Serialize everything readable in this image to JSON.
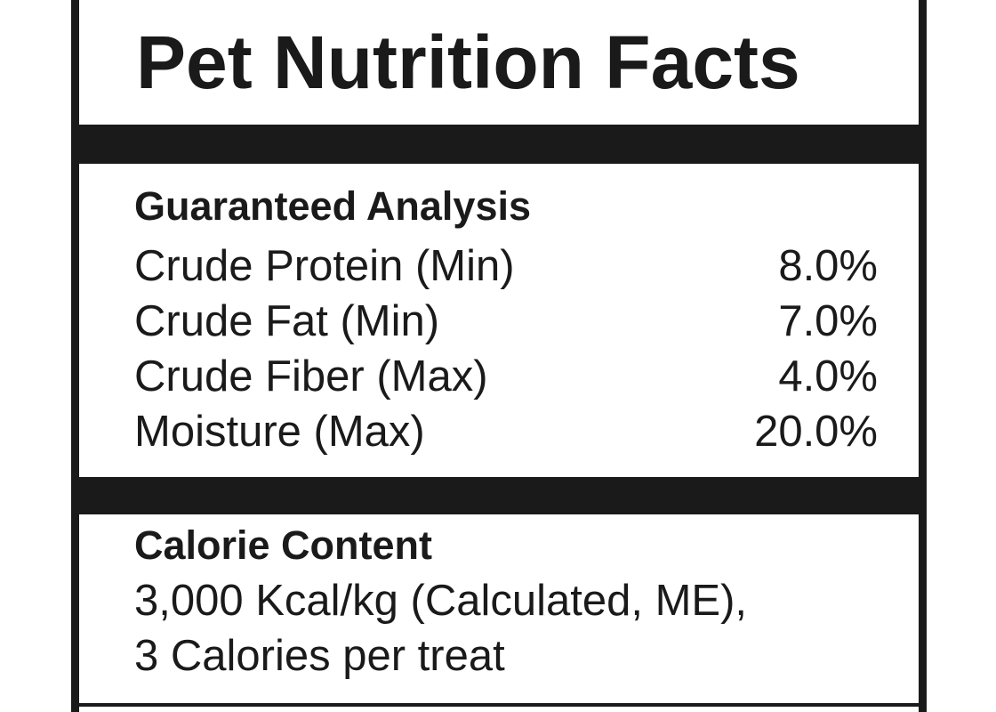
{
  "label": {
    "title": "Pet Nutrition Facts",
    "guaranteed_analysis": {
      "heading": "Guaranteed Analysis",
      "rows": [
        {
          "name": "Crude Protein (Min)",
          "value": "8.0%"
        },
        {
          "name": "Crude Fat (Min)",
          "value": "7.0%"
        },
        {
          "name": "Crude Fiber (Max)",
          "value": "4.0%"
        },
        {
          "name": "Moisture (Max)",
          "value": "20.0%"
        }
      ]
    },
    "calorie_content": {
      "heading": "Calorie Content",
      "line1": "3,000 Kcal/kg (Calculated, ME),",
      "line2": "3 Calories per treat"
    }
  }
}
